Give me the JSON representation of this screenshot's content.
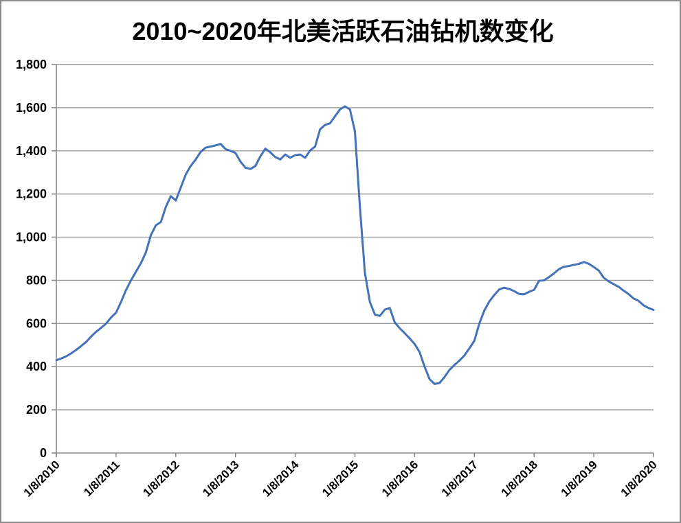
{
  "window": {
    "background_color": "#ffffff",
    "border_color": "#8c8c8c"
  },
  "chart_data": {
    "type": "line",
    "title": "2010~2020年北美活跃石油钻机数变化",
    "xlabel": "",
    "ylabel": "",
    "ylim": [
      0,
      1800
    ],
    "y_ticks": [
      0,
      200,
      400,
      600,
      800,
      1000,
      1200,
      1400,
      1600,
      1800
    ],
    "y_tick_labels": [
      "0",
      "200",
      "400",
      "600",
      "800",
      "1,000",
      "1,200",
      "1,400",
      "1,600",
      "1,800"
    ],
    "x_tick_labels": [
      "1/8/2010",
      "1/8/2011",
      "1/8/2012",
      "1/8/2013",
      "1/8/2014",
      "1/8/2015",
      "1/8/2016",
      "1/8/2017",
      "1/8/2018",
      "1/8/2019",
      "1/8/2020"
    ],
    "grid": "horizontal",
    "legend_position": "none",
    "axis_color": "#8c8c8c",
    "gridline_color": "#999999",
    "series": [
      {
        "color": "#4472b8",
        "stroke_width": 3,
        "points_per_year": 12,
        "start_label": "1/8/2010",
        "end_label": "1/8/2020",
        "values": [
          430,
          438,
          448,
          462,
          478,
          496,
          515,
          540,
          562,
          580,
          600,
          628,
          650,
          700,
          755,
          800,
          840,
          880,
          930,
          1010,
          1055,
          1070,
          1140,
          1190,
          1170,
          1230,
          1290,
          1330,
          1360,
          1395,
          1415,
          1420,
          1425,
          1432,
          1408,
          1400,
          1390,
          1350,
          1322,
          1316,
          1330,
          1375,
          1410,
          1393,
          1371,
          1360,
          1383,
          1368,
          1380,
          1383,
          1368,
          1402,
          1420,
          1500,
          1520,
          1528,
          1560,
          1592,
          1606,
          1592,
          1490,
          1140,
          835,
          700,
          642,
          635,
          664,
          672,
          605,
          578,
          555,
          531,
          505,
          467,
          400,
          342,
          320,
          324,
          352,
          385,
          408,
          428,
          452,
          485,
          520,
          600,
          660,
          702,
          732,
          758,
          766,
          760,
          750,
          737,
          735,
          747,
          756,
          798,
          800,
          815,
          832,
          852,
          863,
          866,
          872,
          876,
          885,
          877,
          862,
          845,
          812,
          795,
          782,
          770,
          752,
          736,
          716,
          705,
          684,
          672,
          663
        ]
      }
    ]
  }
}
